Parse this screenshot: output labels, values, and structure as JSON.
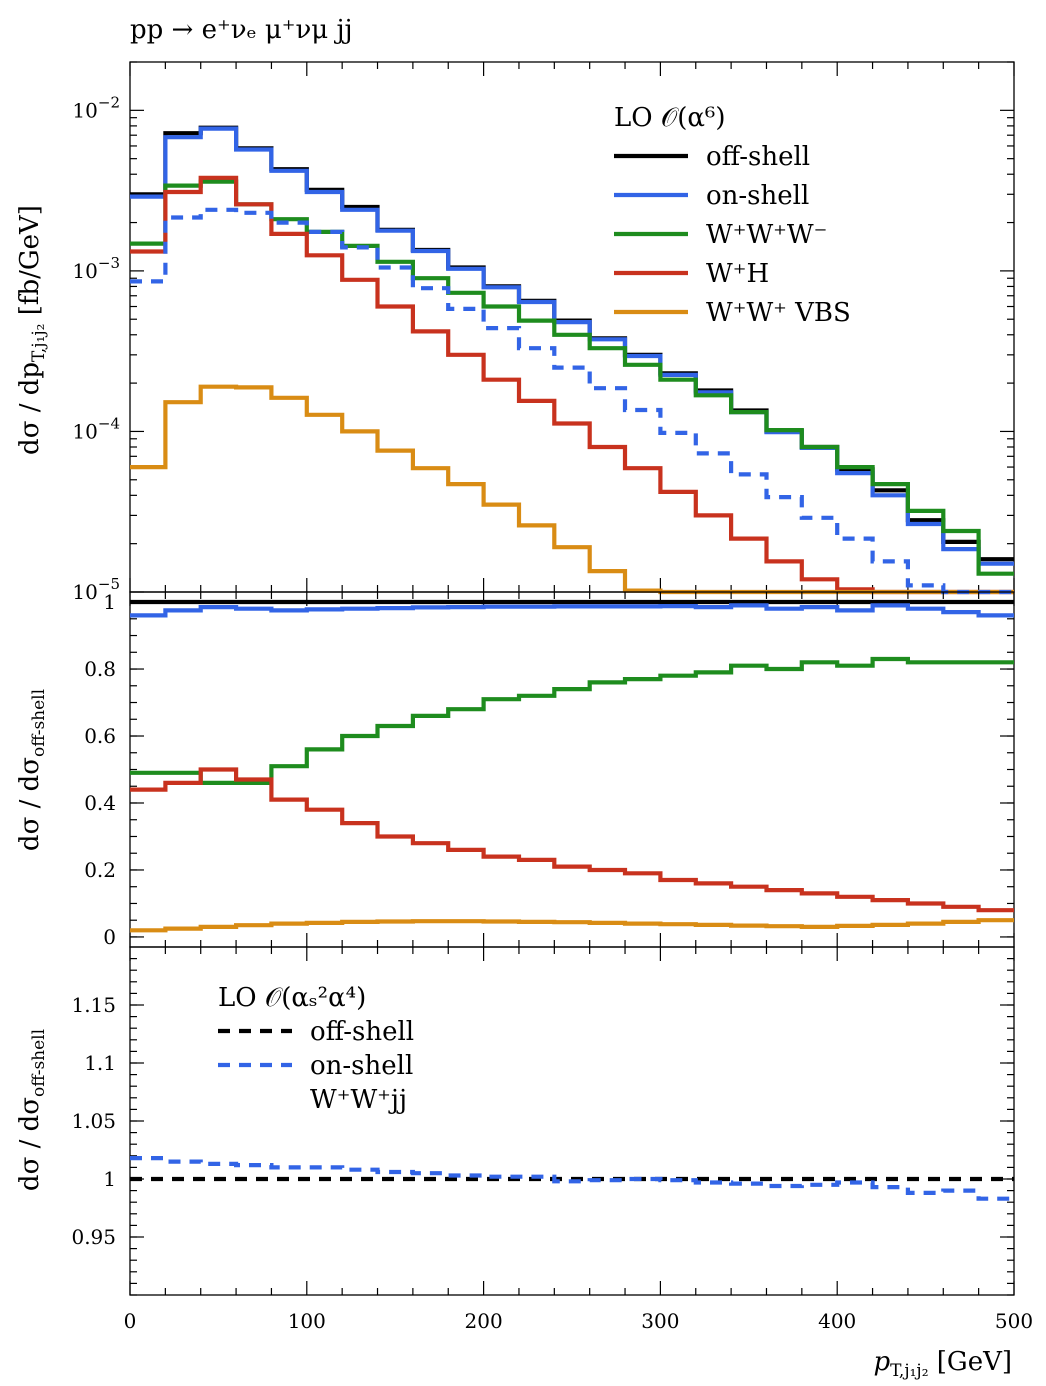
{
  "figure": {
    "title": "pp → e⁺νₑ μ⁺νμ jj",
    "xlabel": "p_T,j1j2 [GeV]",
    "xlabel_parts": {
      "main": "p",
      "sub": "T,j₁j₂",
      "unit": " [GeV]"
    },
    "xticks": [
      "0",
      "100",
      "200",
      "300",
      "400",
      "500"
    ]
  },
  "chart_data": [
    {
      "type": "line",
      "panel": "top",
      "ylabel": "dσ/dp_T,j1j2 [fb/GeV]",
      "ylabel_parts": {
        "main": "dσ / dp",
        "sub": "T,j₁j₂",
        "unit": " [fb/GeV]"
      },
      "yscale": "log",
      "ylim": [
        1e-05,
        0.02
      ],
      "xlim": [
        0,
        500
      ],
      "yticks": [
        {
          "value": 0.01,
          "base": "10",
          "exp": "−2"
        },
        {
          "value": 0.001,
          "base": "10",
          "exp": "−3"
        },
        {
          "value": 0.0001,
          "base": "10",
          "exp": "−4"
        },
        {
          "value": 1e-05,
          "base": "10",
          "exp": "−5"
        }
      ],
      "bin_edges": [
        0,
        20,
        40,
        60,
        80,
        100,
        120,
        140,
        160,
        180,
        200,
        220,
        240,
        260,
        280,
        300,
        320,
        340,
        360,
        380,
        400,
        420,
        440,
        460,
        480,
        500
      ],
      "legend": {
        "title": "LO 𝒪(α⁶)",
        "placement": "top-right",
        "entries": [
          "off-shell",
          "on-shell",
          "W⁺W⁺W⁻",
          "W⁺H",
          "W⁺W⁺ VBS"
        ]
      },
      "series": [
        {
          "name": "off-shell",
          "color": "#000000",
          "dash": "solid",
          "values": [
            0.003,
            0.0072,
            0.0078,
            0.0058,
            0.0043,
            0.0032,
            0.0025,
            0.0018,
            0.00135,
            0.00105,
            0.0008,
            0.00065,
            0.00049,
            0.00038,
            0.0003,
            0.00023,
            0.00018,
            0.000135,
            0.0001,
            8e-05,
            5.8e-05,
            4.3e-05,
            2.8e-05,
            2.05e-05,
            1.6e-05
          ]
        },
        {
          "name": "on-shell",
          "color": "#3264e6",
          "dash": "solid",
          "values": [
            0.0029,
            0.0068,
            0.0077,
            0.0057,
            0.0042,
            0.0031,
            0.0024,
            0.00178,
            0.00133,
            0.00103,
            0.00079,
            0.00064,
            0.00048,
            0.000375,
            0.000295,
            0.000225,
            0.000175,
            0.000132,
            9.9e-05,
            7.9e-05,
            5.5e-05,
            4e-05,
            2.65e-05,
            1.85e-05,
            1.5e-05
          ]
        },
        {
          "name": "W⁺W⁺W⁻",
          "color": "#1e8c1e",
          "dash": "solid",
          "values": [
            0.00148,
            0.0034,
            0.0036,
            0.0026,
            0.0021,
            0.00175,
            0.00143,
            0.00114,
            0.0009,
            0.00073,
            0.0006,
            0.00049,
            0.0004,
            0.00033,
            0.00026,
            0.00021,
            0.000168,
            0.000132,
            0.000102,
            8e-05,
            6e-05,
            4.7e-05,
            3.2e-05,
            2.4e-05,
            1.3e-05
          ]
        },
        {
          "name": "W⁺H",
          "color": "#c8321e",
          "dash": "solid",
          "values": [
            0.00132,
            0.0031,
            0.0038,
            0.0026,
            0.0017,
            0.00125,
            0.00088,
            0.0006,
            0.00042,
            0.0003,
            0.00021,
            0.000155,
            0.000112,
            8e-05,
            5.9e-05,
            4.2e-05,
            3e-05,
            2.15e-05,
            1.55e-05,
            1.2e-05,
            1.04e-05,
            9e-06,
            9e-06,
            9e-06,
            9e-06
          ]
        },
        {
          "name": "W⁺W⁺ VBS",
          "color": "#d98c14",
          "dash": "solid",
          "values": [
            6e-05,
            0.000152,
            0.00019,
            0.000188,
            0.000162,
            0.000127,
            0.0001,
            7.6e-05,
            5.9e-05,
            4.7e-05,
            3.5e-05,
            2.6e-05,
            1.9e-05,
            1.35e-05,
            1.02e-05,
            9e-06,
            9e-06,
            9e-06,
            9e-06,
            9e-06,
            9e-06,
            9e-06,
            9e-06,
            9e-06,
            9e-06
          ]
        },
        {
          "name": "",
          "color": "#3264e6",
          "dash": "dashed",
          "values": [
            0.00086,
            0.00215,
            0.0024,
            0.0023,
            0.002,
            0.00175,
            0.0014,
            0.00105,
            0.00078,
            0.00058,
            0.00044,
            0.00033,
            0.00025,
            0.000186,
            0.000136,
            9.8e-05,
            7.3e-05,
            5.4e-05,
            3.9e-05,
            2.9e-05,
            2.15e-05,
            1.55e-05,
            1.1e-05,
            1e-05,
            1e-05
          ]
        }
      ]
    },
    {
      "type": "line",
      "panel": "middle",
      "ylabel": "dσ/dσ_off-shell",
      "ylabel_parts": {
        "main": "dσ / dσ",
        "sub": "off-shell"
      },
      "ylim": [
        -0.03,
        1.03
      ],
      "xlim": [
        0,
        500
      ],
      "yticks": [
        "0",
        "0.2",
        "0.4",
        "0.6",
        "0.8",
        "1"
      ],
      "bin_edges": [
        0,
        20,
        40,
        60,
        80,
        100,
        120,
        140,
        160,
        180,
        200,
        220,
        240,
        260,
        280,
        300,
        320,
        340,
        360,
        380,
        400,
        420,
        440,
        460,
        480,
        500
      ],
      "series": [
        {
          "name": "off-shell",
          "color": "#000000",
          "dash": "solid",
          "values": [
            1,
            1,
            1,
            1,
            1,
            1,
            1,
            1,
            1,
            1,
            1,
            1,
            1,
            1,
            1,
            1,
            1,
            1,
            1,
            1,
            1,
            1,
            1,
            1,
            1
          ]
        },
        {
          "name": "on-shell",
          "color": "#3264e6",
          "dash": "solid",
          "values": [
            0.96,
            0.975,
            0.985,
            0.98,
            0.975,
            0.978,
            0.98,
            0.982,
            0.984,
            0.985,
            0.986,
            0.986,
            0.987,
            0.987,
            0.987,
            0.988,
            0.985,
            0.99,
            0.98,
            0.985,
            0.975,
            0.99,
            0.98,
            0.97,
            0.96
          ]
        },
        {
          "name": "W⁺W⁺W⁻",
          "color": "#1e8c1e",
          "dash": "solid",
          "values": [
            0.49,
            0.49,
            0.46,
            0.46,
            0.51,
            0.56,
            0.6,
            0.63,
            0.66,
            0.68,
            0.71,
            0.72,
            0.74,
            0.76,
            0.77,
            0.78,
            0.79,
            0.81,
            0.8,
            0.82,
            0.81,
            0.83,
            0.82,
            0.82,
            0.82
          ]
        },
        {
          "name": "W⁺H",
          "color": "#c8321e",
          "dash": "solid",
          "values": [
            0.44,
            0.46,
            0.5,
            0.47,
            0.41,
            0.38,
            0.34,
            0.3,
            0.28,
            0.26,
            0.24,
            0.23,
            0.21,
            0.2,
            0.19,
            0.17,
            0.16,
            0.15,
            0.14,
            0.13,
            0.12,
            0.11,
            0.1,
            0.09,
            0.08
          ]
        },
        {
          "name": "W⁺W⁺ VBS",
          "color": "#d98c14",
          "dash": "solid",
          "values": [
            0.02,
            0.025,
            0.03,
            0.035,
            0.04,
            0.042,
            0.045,
            0.046,
            0.047,
            0.047,
            0.046,
            0.045,
            0.044,
            0.042,
            0.04,
            0.038,
            0.036,
            0.034,
            0.032,
            0.03,
            0.033,
            0.036,
            0.04,
            0.045,
            0.05
          ]
        }
      ]
    },
    {
      "type": "line",
      "panel": "bottom",
      "ylabel": "dσ/dσ_off-shell",
      "ylabel_parts": {
        "main": "dσ / dσ",
        "sub": "off-shell"
      },
      "ylim": [
        0.9,
        1.2
      ],
      "xlim": [
        0,
        500
      ],
      "yticks": [
        "0.95",
        "1",
        "1.05",
        "1.1",
        "1.15"
      ],
      "bin_edges": [
        0,
        20,
        40,
        60,
        80,
        100,
        120,
        140,
        160,
        180,
        200,
        220,
        240,
        260,
        280,
        300,
        320,
        340,
        360,
        380,
        400,
        420,
        440,
        460,
        480,
        500
      ],
      "legend": {
        "title": "LO 𝒪(αₛ²α⁴)",
        "placement": "top-left",
        "entries": [
          "off-shell",
          "on-shell",
          "W⁺W⁺jj"
        ]
      },
      "series": [
        {
          "name": "off-shell",
          "color": "#000000",
          "dash": "dashed",
          "values": [
            1,
            1,
            1,
            1,
            1,
            1,
            1,
            1,
            1,
            1,
            1,
            1,
            1,
            1,
            1,
            1,
            1,
            1,
            1,
            1,
            1,
            1,
            1,
            1,
            1
          ]
        },
        {
          "name": "on-shell",
          "color": "#3264e6",
          "dash": "dashed",
          "values": [
            1.018,
            1.015,
            1.013,
            1.012,
            1.01,
            1.01,
            1.008,
            1.006,
            1.005,
            1.003,
            1.002,
            1.002,
            0.998,
            0.999,
            1,
            0.999,
            0.997,
            0.996,
            0.994,
            0.995,
            0.997,
            0.993,
            0.988,
            0.99,
            0.983
          ]
        }
      ]
    }
  ]
}
